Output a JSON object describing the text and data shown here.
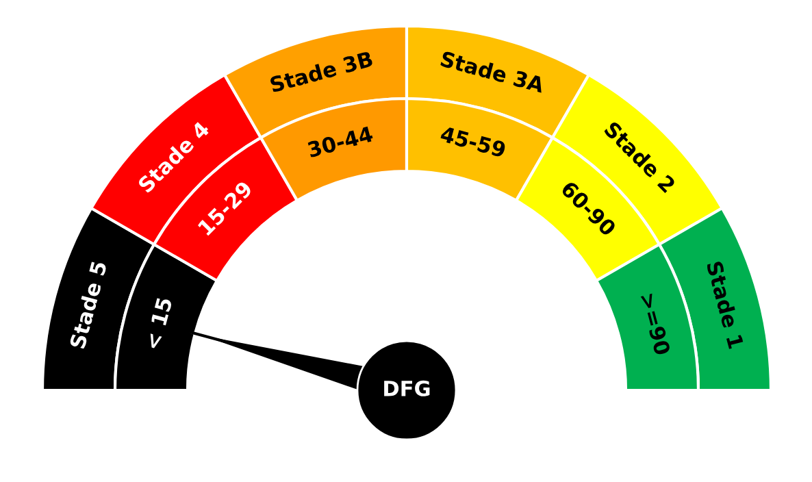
{
  "chart_data": {
    "type": "donut",
    "categories": [
      "Stade 5",
      "Stade 4",
      "Stade 3B",
      "Stade 3A",
      "Stade 2",
      "Stade 1"
    ],
    "colors": [
      "#000000",
      "#ff0000",
      "#ffa000",
      "#ffc000",
      "#ffff00",
      "#00b050"
    ],
    "needle": "Stade 5",
    "annotations": [
      "DFG"
    ],
    "series": [
      {
        "values": [
          16.67,
          16.67,
          16.67,
          16.67,
          16.67,
          16.67
        ]
      },
      {
        "values": [
          16.67,
          16.67,
          16.67,
          16.67,
          16.67,
          16.67
        ],
        "value_labels": [
          "< 15",
          "15-29",
          "30-44",
          "45-59",
          "60-90",
          ">=90"
        ],
        "colors": [
          "#000000",
          "#ff0000",
          "#ff9900",
          "#ffc000",
          "#ffff00",
          "#00b050"
        ]
      }
    ]
  }
}
